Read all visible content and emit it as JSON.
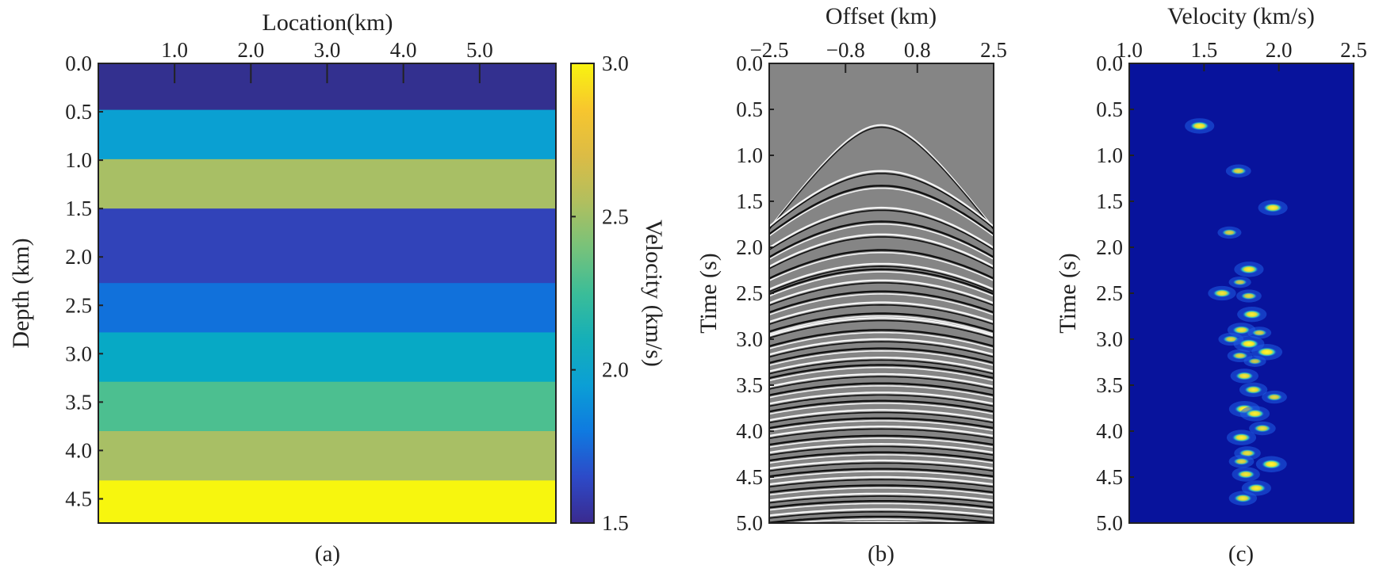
{
  "chart_data": [
    {
      "type": "heatmap",
      "panel_label": "(a)",
      "title": "",
      "xlabel": "Location(km)",
      "ylabel": "Depth (km)",
      "xlim": [
        0,
        6.0
      ],
      "ylim": [
        0,
        4.75
      ],
      "xticks": [
        1.0,
        2.0,
        3.0,
        4.0,
        5.0
      ],
      "xtick_labels": [
        "1.0",
        "2.0",
        "3.0",
        "4.0",
        "5.0"
      ],
      "yticks": [
        0.0,
        0.5,
        1.0,
        1.5,
        2.0,
        2.5,
        3.0,
        3.5,
        4.0,
        4.5
      ],
      "ytick_labels": [
        "0.0",
        "0.5",
        "1.0",
        "1.5",
        "2.0",
        "2.5",
        "3.0",
        "3.5",
        "4.0",
        "4.5"
      ],
      "layers": [
        {
          "top": 0.0,
          "bottom": 0.48,
          "velocity": 1.55,
          "color": "#33308f"
        },
        {
          "top": 0.48,
          "bottom": 0.99,
          "velocity": 1.95,
          "color": "#0aa0d2"
        },
        {
          "top": 0.99,
          "bottom": 1.5,
          "velocity": 2.55,
          "color": "#a8bf65"
        },
        {
          "top": 1.5,
          "bottom": 2.27,
          "velocity": 1.6,
          "color": "#3143b9"
        },
        {
          "top": 2.27,
          "bottom": 2.78,
          "velocity": 1.8,
          "color": "#1171db"
        },
        {
          "top": 2.78,
          "bottom": 3.29,
          "velocity": 2.0,
          "color": "#07a9c5"
        },
        {
          "top": 3.29,
          "bottom": 3.8,
          "velocity": 2.3,
          "color": "#4cbf90"
        },
        {
          "top": 3.8,
          "bottom": 4.31,
          "velocity": 2.55,
          "color": "#a8bf65"
        },
        {
          "top": 4.31,
          "bottom": 4.75,
          "velocity": 3.0,
          "color": "#f7f60e"
        }
      ],
      "colorbar": {
        "label": "Velocity (km/s)",
        "range": [
          1.5,
          3.0
        ],
        "ticks": [
          1.5,
          2.0,
          2.5,
          3.0
        ],
        "tick_labels": [
          "1.5",
          "2.0",
          "2.5",
          "3.0"
        ],
        "stops": [
          "#3a2a8f",
          "#2d4ac8",
          "#0f7ae0",
          "#0b9fd5",
          "#15afb8",
          "#3bbd98",
          "#78c27a",
          "#b2bf5e",
          "#dcbc45",
          "#f7c62e",
          "#f9f40f"
        ]
      }
    },
    {
      "type": "wiggle-image",
      "panel_label": "(b)",
      "title": "",
      "xlabel": "Offset (km)",
      "ylabel": "Time (s)",
      "xlim": [
        -2.5,
        2.5
      ],
      "ylim": [
        0,
        5.0
      ],
      "xticks": [
        -2.5,
        -0.8,
        0.8,
        2.5
      ],
      "xtick_labels": [
        "−2.5",
        "−0.8",
        "0.8",
        "2.5"
      ],
      "yticks": [
        0.0,
        0.5,
        1.0,
        1.5,
        2.0,
        2.5,
        3.0,
        3.5,
        4.0,
        4.5,
        5.0
      ],
      "ytick_labels": [
        "0.0",
        "0.5",
        "1.0",
        "1.5",
        "2.0",
        "2.5",
        "3.0",
        "3.5",
        "4.0",
        "4.5",
        "5.0"
      ],
      "background": "#858585",
      "first_event_t0": 0.67,
      "first_event_velocity": 1.5,
      "event_t0s": [
        1.17,
        1.33,
        1.57,
        1.72,
        1.86,
        2.03,
        2.18,
        2.24,
        2.36,
        2.48,
        2.6,
        2.72,
        2.77,
        2.9,
        3.0,
        3.1,
        3.2,
        3.28,
        3.38,
        3.48,
        3.58,
        3.67,
        3.77,
        3.86,
        3.95,
        4.05,
        4.14,
        4.23,
        4.32,
        4.41,
        4.5,
        4.59,
        4.68,
        4.76,
        4.85,
        4.93,
        4.99
      ]
    },
    {
      "type": "heatmap",
      "panel_label": "(c)",
      "title": "",
      "xlabel": "Velocity (km/s)",
      "ylabel": "Time (s)",
      "xlim": [
        1.0,
        2.5
      ],
      "ylim": [
        0,
        5.0
      ],
      "xticks": [
        1.0,
        1.5,
        2.0,
        2.5
      ],
      "xtick_labels": [
        "1.0",
        "1.5",
        "2.0",
        "2.5"
      ],
      "yticks": [
        0.0,
        0.5,
        1.0,
        1.5,
        2.0,
        2.5,
        3.0,
        3.5,
        4.0,
        4.5,
        5.0
      ],
      "ytick_labels": [
        "0.0",
        "0.5",
        "1.0",
        "1.5",
        "2.0",
        "2.5",
        "3.0",
        "3.5",
        "4.0",
        "4.5",
        "5.0"
      ],
      "background": "#08139c",
      "peaks": [
        {
          "v": 1.47,
          "t": 0.68,
          "amp": 0.9
        },
        {
          "v": 1.73,
          "t": 1.17,
          "amp": 0.6
        },
        {
          "v": 1.96,
          "t": 1.57,
          "amp": 0.9
        },
        {
          "v": 1.67,
          "t": 1.84,
          "amp": 0.5
        },
        {
          "v": 1.8,
          "t": 2.24,
          "amp": 0.9
        },
        {
          "v": 1.74,
          "t": 2.38,
          "amp": 0.4
        },
        {
          "v": 1.62,
          "t": 2.5,
          "amp": 0.8
        },
        {
          "v": 1.8,
          "t": 2.53,
          "amp": 0.6
        },
        {
          "v": 1.82,
          "t": 2.73,
          "amp": 0.9
        },
        {
          "v": 1.75,
          "t": 2.9,
          "amp": 0.8
        },
        {
          "v": 1.87,
          "t": 2.93,
          "amp": 0.5
        },
        {
          "v": 1.68,
          "t": 3.0,
          "amp": 0.6
        },
        {
          "v": 1.8,
          "t": 3.05,
          "amp": 1.0
        },
        {
          "v": 1.92,
          "t": 3.14,
          "amp": 1.0
        },
        {
          "v": 1.74,
          "t": 3.18,
          "amp": 0.6
        },
        {
          "v": 1.84,
          "t": 3.24,
          "amp": 0.4
        },
        {
          "v": 1.77,
          "t": 3.4,
          "amp": 0.8
        },
        {
          "v": 1.83,
          "t": 3.55,
          "amp": 0.8
        },
        {
          "v": 1.97,
          "t": 3.63,
          "amp": 0.6
        },
        {
          "v": 1.77,
          "t": 3.76,
          "amp": 1.0
        },
        {
          "v": 1.84,
          "t": 3.81,
          "amp": 0.9
        },
        {
          "v": 1.89,
          "t": 3.97,
          "amp": 0.7
        },
        {
          "v": 1.75,
          "t": 4.07,
          "amp": 0.9
        },
        {
          "v": 1.79,
          "t": 4.24,
          "amp": 0.7
        },
        {
          "v": 1.95,
          "t": 4.36,
          "amp": 1.0
        },
        {
          "v": 1.75,
          "t": 4.33,
          "amp": 0.6
        },
        {
          "v": 1.78,
          "t": 4.47,
          "amp": 0.8
        },
        {
          "v": 1.85,
          "t": 4.62,
          "amp": 0.9
        },
        {
          "v": 1.76,
          "t": 4.73,
          "amp": 0.8
        }
      ]
    }
  ]
}
